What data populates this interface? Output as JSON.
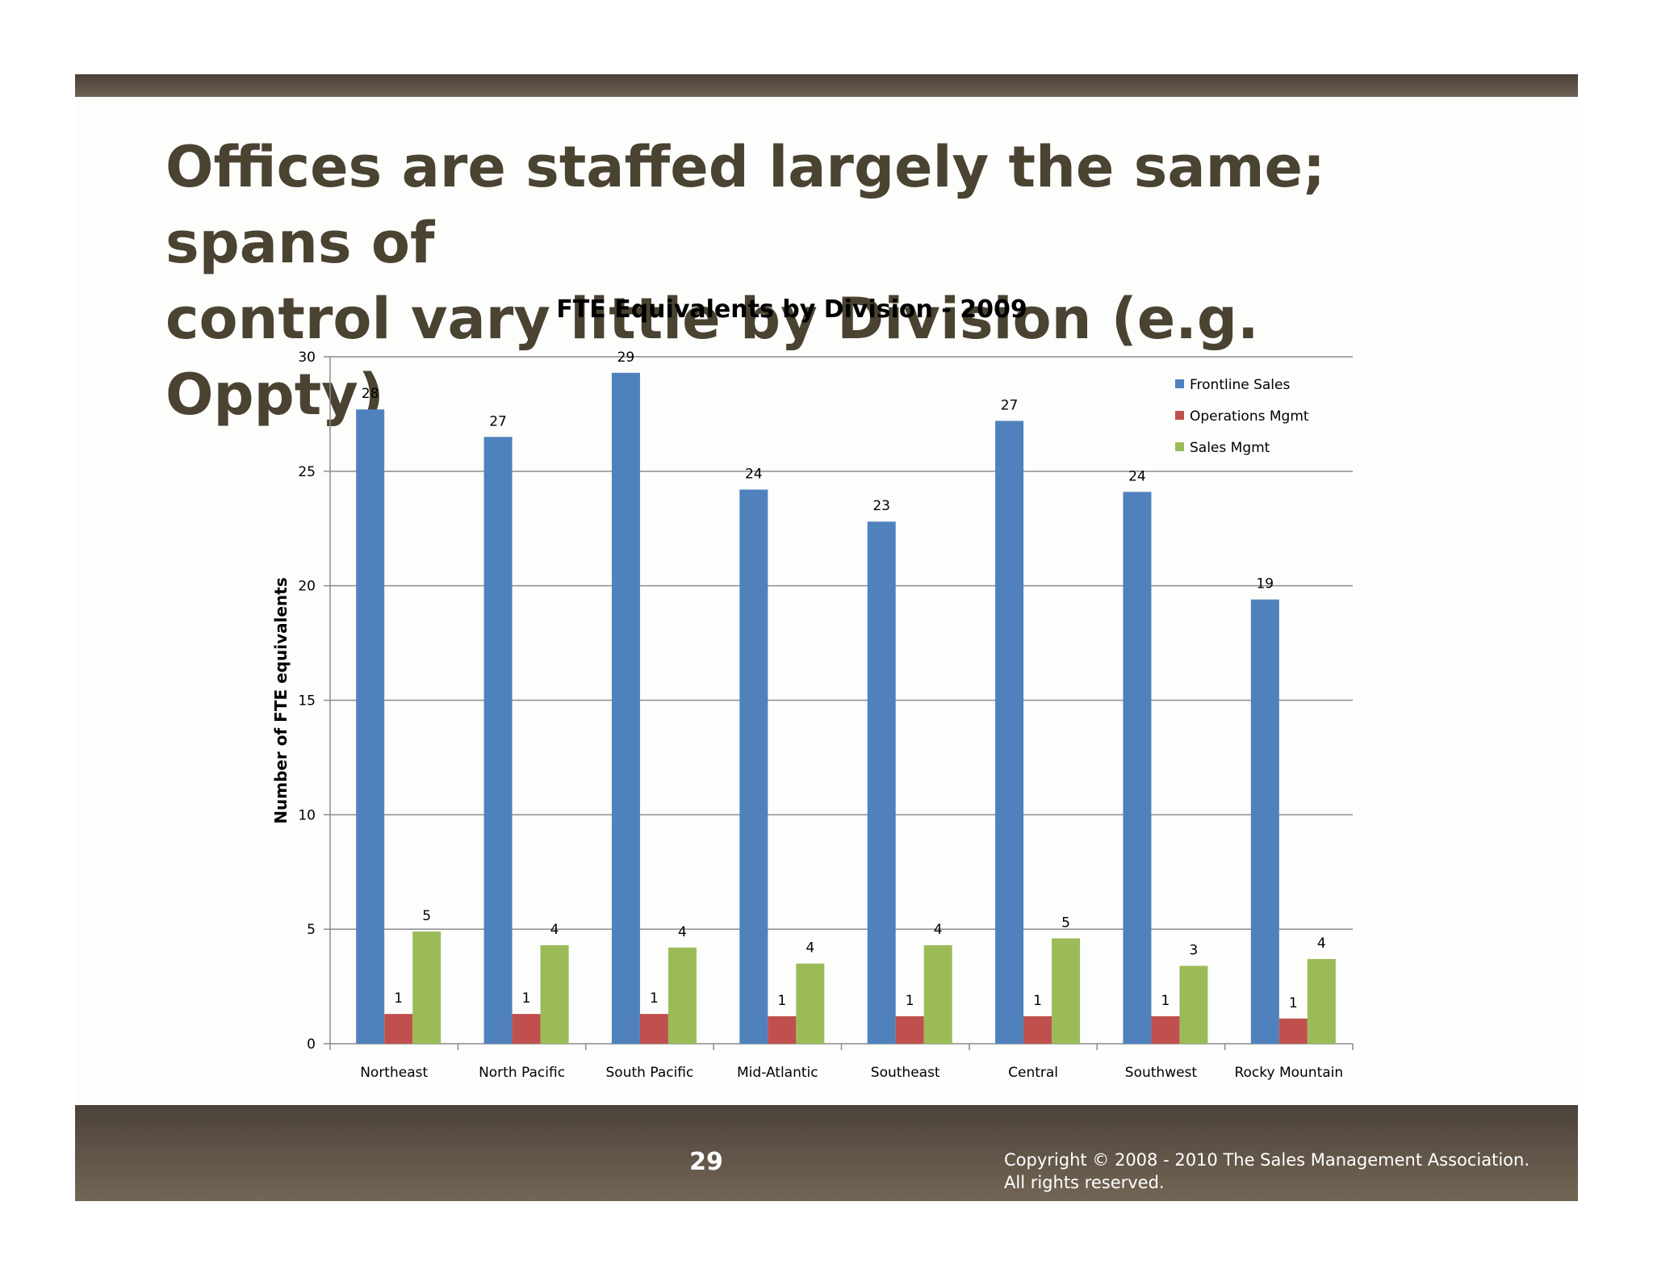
{
  "slide": {
    "title_line1": "Offices are staffed largely the same; spans of",
    "title_line2": "control vary little by Division (e.g. Oppty)",
    "page_number": "29",
    "copyright_line1": "Copyright © 2008 - 2010 The Sales Management Association.",
    "copyright_line2": "All rights reserved."
  },
  "colors": {
    "frontline": "#4f81bd",
    "operations": "#c0504d",
    "sales_mgmt": "#9bbb59",
    "bar_header": "#4a4036",
    "title_text": "#4a4331"
  },
  "chart_data": {
    "type": "bar",
    "title": "FTE Equivalents by Division - 2009",
    "xlabel": "",
    "ylabel": "Number of FTE equivalents",
    "ylim": [
      0,
      30
    ],
    "yticks": [
      0,
      5,
      10,
      15,
      20,
      25,
      30
    ],
    "grid": true,
    "legend_position": "top-right",
    "categories": [
      "Northeast",
      "North Pacific",
      "South Pacific",
      "Mid-Atlantic",
      "Southeast",
      "Central",
      "Southwest",
      "Rocky Mountain"
    ],
    "series": [
      {
        "name": "Frontline Sales",
        "values": [
          27.7,
          26.5,
          29.3,
          24.2,
          22.8,
          27.2,
          24.1,
          19.4
        ],
        "labels": [
          "28",
          "27",
          "29",
          "24",
          "23",
          "27",
          "24",
          "19"
        ]
      },
      {
        "name": "Operations Mgmt",
        "values": [
          1.3,
          1.3,
          1.3,
          1.2,
          1.2,
          1.2,
          1.2,
          1.1
        ],
        "labels": [
          "1",
          "1",
          "1",
          "1",
          "1",
          "1",
          "1",
          "1"
        ]
      },
      {
        "name": "Sales Mgmt",
        "values": [
          4.9,
          4.3,
          4.2,
          3.5,
          4.3,
          4.6,
          3.4,
          3.7
        ],
        "labels": [
          "5",
          "4",
          "4",
          "4",
          "4",
          "5",
          "3",
          "4"
        ]
      }
    ]
  }
}
